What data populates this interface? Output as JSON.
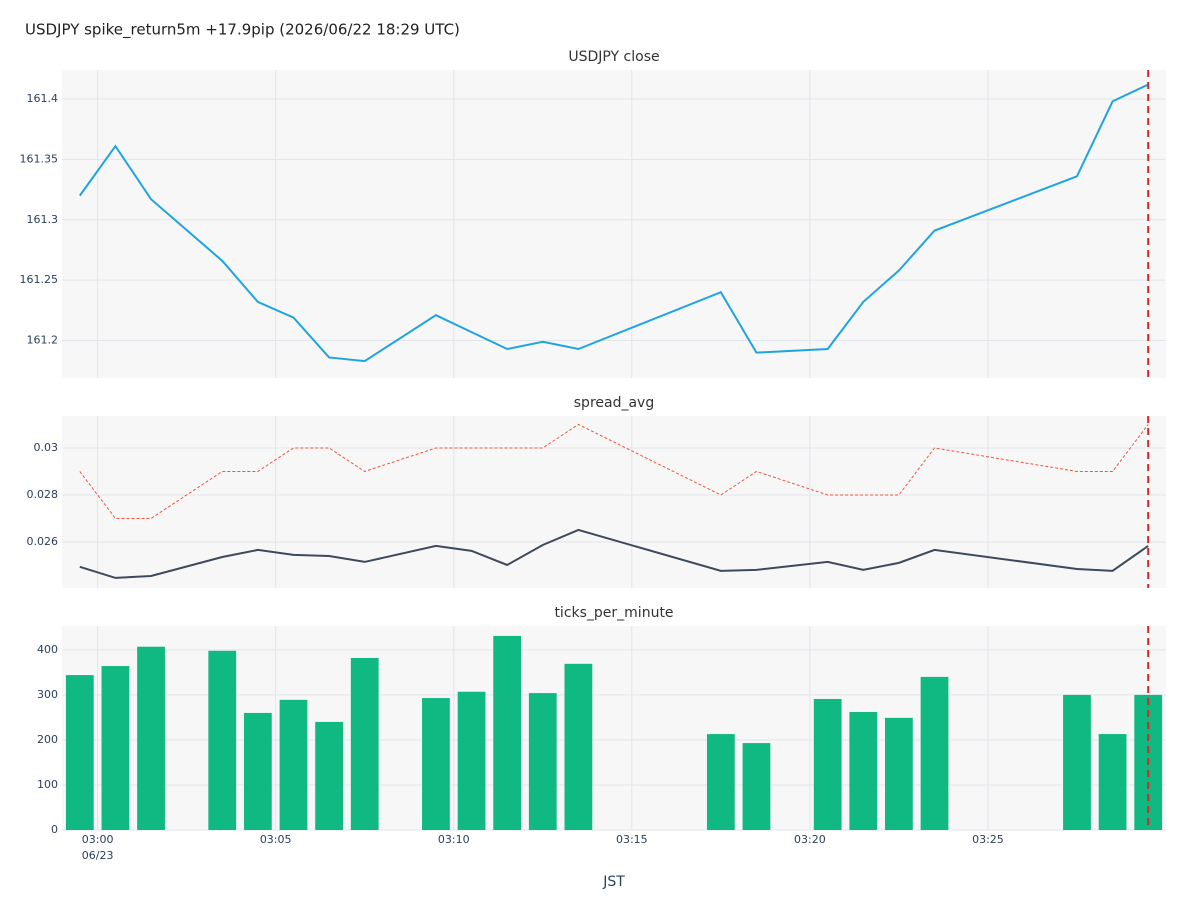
{
  "title": "USDJPY spike_return5m +17.9pip (2026/06/22 18:29 UTC)",
  "chart_data": [
    {
      "type": "line",
      "title": "USDJPY close",
      "x": [
        "02:59",
        "03:00",
        "03:01",
        "03:03",
        "03:04",
        "03:05",
        "03:06",
        "03:07",
        "03:09",
        "03:10",
        "03:11",
        "03:12",
        "03:13",
        "03:17",
        "03:18",
        "03:20",
        "03:21",
        "03:22",
        "03:23",
        "03:27",
        "03:28",
        "03:29"
      ],
      "series": [
        {
          "color": "#1fa4e0",
          "dash": "solid",
          "values": [
            161.32,
            161.361,
            161.317,
            161.266,
            161.232,
            161.219,
            161.186,
            161.183,
            161.221,
            161.207,
            161.193,
            161.199,
            161.193,
            161.24,
            161.19,
            161.193,
            161.232,
            161.258,
            161.291,
            161.336,
            161.398,
            161.412
          ]
        }
      ],
      "ylim": [
        161.169,
        161.424
      ],
      "yticks": [
        161.2,
        161.25,
        161.3,
        161.35,
        161.4
      ],
      "vline": {
        "x": "03:29",
        "color": "#d62728"
      }
    },
    {
      "type": "line",
      "title": "spread_avg",
      "x": [
        "02:59",
        "03:00",
        "03:01",
        "03:03",
        "03:04",
        "03:05",
        "03:06",
        "03:07",
        "03:09",
        "03:10",
        "03:11",
        "03:12",
        "03:13",
        "03:17",
        "03:18",
        "03:20",
        "03:21",
        "03:22",
        "03:23",
        "03:27",
        "03:28",
        "03:29"
      ],
      "series": [
        {
          "color": "#ef553b",
          "dash": "dotted",
          "values": [
            0.029,
            0.027,
            0.027,
            0.029,
            0.029,
            0.03,
            0.03,
            0.029,
            0.03,
            0.03,
            0.03,
            0.03,
            0.031,
            0.028,
            0.029,
            0.028,
            0.028,
            0.028,
            0.03,
            0.029,
            0.029,
            0.031
          ]
        },
        {
          "color": "#3d4a5c",
          "dash": "solid",
          "values": [
            0.02494,
            0.02447,
            0.02455,
            0.02536,
            0.02566,
            0.02545,
            0.0254,
            0.02515,
            0.02583,
            0.02562,
            0.02502,
            0.02587,
            0.02651,
            0.02477,
            0.02481,
            0.02515,
            0.02481,
            0.02511,
            0.02566,
            0.02485,
            0.02477,
            0.02583
          ]
        }
      ],
      "ylim": [
        0.02404,
        0.03136
      ],
      "yticks": [
        0.026,
        0.028,
        0.03
      ],
      "vline": {
        "x": "03:29",
        "color": "#d62728"
      }
    },
    {
      "type": "bar",
      "title": "ticks_per_minute",
      "xlabel": "JST",
      "x": [
        "02:59",
        "03:00",
        "03:01",
        "03:03",
        "03:04",
        "03:05",
        "03:06",
        "03:07",
        "03:09",
        "03:10",
        "03:11",
        "03:12",
        "03:13",
        "03:17",
        "03:18",
        "03:20",
        "03:21",
        "03:22",
        "03:23",
        "03:27",
        "03:28",
        "03:29"
      ],
      "values": [
        344,
        364,
        407,
        398,
        260,
        289,
        240,
        382,
        293,
        307,
        431,
        304,
        369,
        213,
        193,
        291,
        262,
        249,
        340,
        300,
        213,
        300
      ],
      "color": "#10b981",
      "ylim": [
        0,
        453
      ],
      "yticks": [
        0,
        100,
        200,
        300,
        400
      ],
      "xlim": [
        "02:59",
        "03:30"
      ],
      "xticks": [
        "03:00",
        "03:05",
        "03:10",
        "03:15",
        "03:20",
        "03:25"
      ],
      "date_label": "06/23",
      "vline": {
        "x": "03:29",
        "color": "#d62728"
      }
    }
  ]
}
